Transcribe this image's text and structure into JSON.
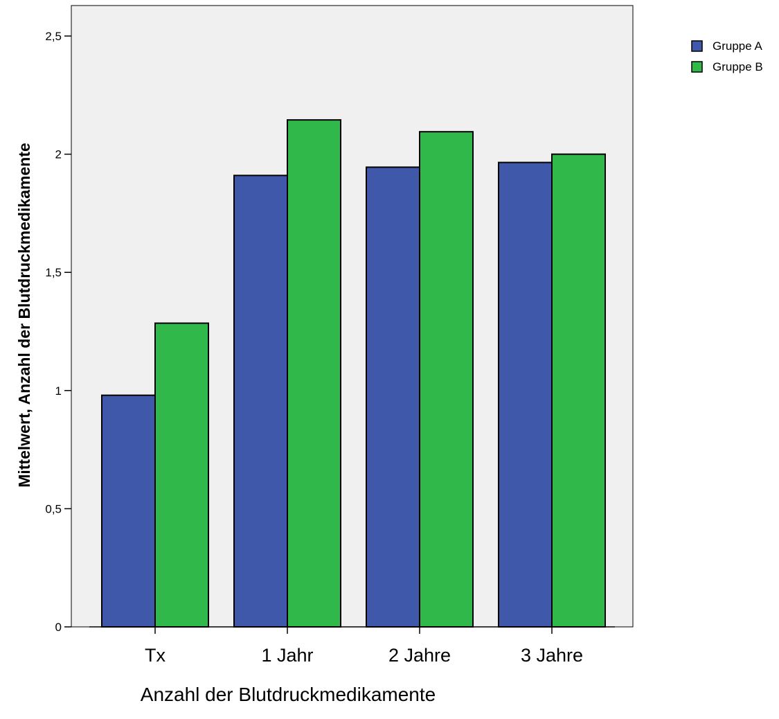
{
  "chart_data": {
    "type": "bar",
    "categories": [
      "Tx",
      "1 Jahr",
      "2 Jahre",
      "3 Jahre"
    ],
    "series": [
      {
        "name": "Gruppe A",
        "color": "#3f58a9",
        "values": [
          0.98,
          1.91,
          1.945,
          1.965
        ]
      },
      {
        "name": "Gruppe B",
        "color": "#31b84b",
        "values": [
          1.285,
          2.145,
          2.095,
          2.0
        ]
      }
    ],
    "xlabel": "Anzahl der Blutdruckmedikamente",
    "ylabel": "Mittelwert, Anzahl der Blutdruckmedikamente",
    "ylim": [
      0,
      2.5
    ],
    "yticks": [
      {
        "value": 0,
        "label": "0"
      },
      {
        "value": 0.5,
        "label": "0,5"
      },
      {
        "value": 1,
        "label": "1"
      },
      {
        "value": 1.5,
        "label": "1,5"
      },
      {
        "value": 2,
        "label": "2"
      },
      {
        "value": 2.5,
        "label": "2,5"
      }
    ],
    "grid": false,
    "legend_position": "top-right",
    "plot_background": "#f0f0f0"
  }
}
